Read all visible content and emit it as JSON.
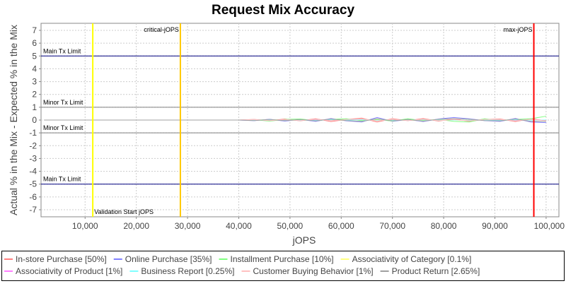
{
  "chart_data": {
    "type": "line",
    "title": "Request Mix Accuracy",
    "xlabel": "jOPS",
    "ylabel": "Actual % in the Mix - Expected % in the Mix",
    "xlim": [
      1400,
      102500
    ],
    "ylim": [
      -7.55,
      7.55
    ],
    "xticks": [
      10000,
      20000,
      30000,
      40000,
      50000,
      60000,
      70000,
      80000,
      90000,
      100000
    ],
    "xtick_labels": [
      "10,000",
      "20,000",
      "30,000",
      "40,000",
      "50,000",
      "60,000",
      "70,000",
      "80,000",
      "90,000",
      "100,000"
    ],
    "yticks": [
      7,
      6,
      5,
      4,
      3,
      2,
      1,
      0,
      -1,
      -2,
      -3,
      -4,
      -5,
      -6,
      -7
    ],
    "grid": true,
    "legend_position": "bottom",
    "hlines": [
      {
        "y": 5,
        "label": "Main Tx Limit",
        "color": "#000080"
      },
      {
        "y": 1,
        "label": "Minor Tx Limit",
        "color": "#808080"
      },
      {
        "y": -1,
        "label": "Minor Tx Limit",
        "color": "#808080"
      },
      {
        "y": -5,
        "label": "Main Tx Limit",
        "color": "#000080"
      }
    ],
    "vlines": [
      {
        "x": 11500,
        "label": "Validation Start jOPS",
        "color": "#ffff00"
      },
      {
        "x": 28600,
        "label": "critical-jOPS",
        "color": "#ffc800"
      },
      {
        "x": 97600,
        "label": "max-jOPS",
        "color": "#ff0000"
      }
    ],
    "x": [
      2000,
      40000,
      43000,
      46000,
      49000,
      52000,
      55000,
      58000,
      61000,
      64000,
      67000,
      70000,
      73000,
      76000,
      79000,
      82000,
      85000,
      88000,
      91000,
      94000,
      97000,
      100000
    ],
    "series": [
      {
        "name": "In-store Purchase [50%]",
        "color": "#ff8080",
        "values": [
          0,
          0,
          0.05,
          -0.05,
          0.08,
          -0.06,
          0.1,
          -0.12,
          0.05,
          0.15,
          -0.15,
          0.1,
          -0.05,
          0.12,
          -0.08,
          0.1,
          -0.1,
          0.05,
          0.08,
          -0.12,
          0.1,
          -0.05
        ]
      },
      {
        "name": "Online Purchase [35%]",
        "color": "#8080ff",
        "values": [
          0,
          0,
          -0.05,
          0.06,
          -0.08,
          0.05,
          -0.1,
          0.12,
          -0.06,
          -0.15,
          0.2,
          -0.1,
          0.05,
          -0.12,
          0.08,
          0.2,
          0.1,
          -0.05,
          -0.1,
          0.12,
          -0.15,
          -0.2
        ]
      },
      {
        "name": "Installment Purchase [10%]",
        "color": "#80ff80",
        "values": [
          0,
          0,
          0.03,
          -0.08,
          0.05,
          0.08,
          -0.05,
          0.05,
          0.1,
          -0.05,
          0.05,
          -0.08,
          0.1,
          -0.05,
          0.05,
          -0.1,
          -0.15,
          0.1,
          -0.05,
          0.05,
          0.1,
          0.3
        ]
      },
      {
        "name": "Associativity of Category [0.1%]",
        "color": "#ffff80",
        "values": [
          0,
          0,
          0,
          0.02,
          0,
          -0.02,
          0.02,
          0,
          -0.02,
          0.02,
          0,
          0.02,
          -0.02,
          0,
          0.02,
          0,
          -0.02,
          0.02,
          0,
          0.02,
          0,
          0
        ]
      },
      {
        "name": "Associativity of Product [1%]",
        "color": "#ff80ff",
        "values": [
          0,
          0,
          0.02,
          -0.03,
          0.03,
          -0.02,
          0.04,
          -0.03,
          0.02,
          0.05,
          -0.04,
          0.03,
          -0.02,
          0.04,
          -0.03,
          0.02,
          -0.04,
          0.03,
          0.02,
          -0.03,
          0.04,
          -0.02
        ]
      },
      {
        "name": "Business Report [0.25%]",
        "color": "#80ffff",
        "values": [
          0,
          0,
          -0.01,
          0.02,
          -0.02,
          0.01,
          -0.02,
          0.02,
          -0.01,
          0.02,
          -0.02,
          0.01,
          -0.01,
          0.02,
          -0.01,
          0.01,
          -0.02,
          0.01,
          -0.01,
          0.02,
          -0.01,
          0.01
        ]
      },
      {
        "name": "Customer Buying Behavior [1%]",
        "color": "#ffc0c0",
        "values": [
          0,
          0,
          0.04,
          -0.04,
          0.03,
          -0.05,
          0.06,
          -0.04,
          0.05,
          0.08,
          -0.06,
          0.05,
          -0.04,
          0.06,
          -0.05,
          0.04,
          -0.06,
          0.05,
          0.04,
          -0.06,
          0.05,
          -0.04
        ]
      },
      {
        "name": "Product Return [2.65%]",
        "color": "#a0a0a0",
        "values": [
          0,
          0,
          -0.04,
          0.05,
          -0.05,
          0.04,
          -0.06,
          0.08,
          -0.04,
          -0.1,
          0.1,
          -0.06,
          0.04,
          -0.08,
          0.06,
          0.1,
          0.06,
          -0.04,
          -0.06,
          0.08,
          -0.1,
          -0.1
        ]
      }
    ]
  }
}
